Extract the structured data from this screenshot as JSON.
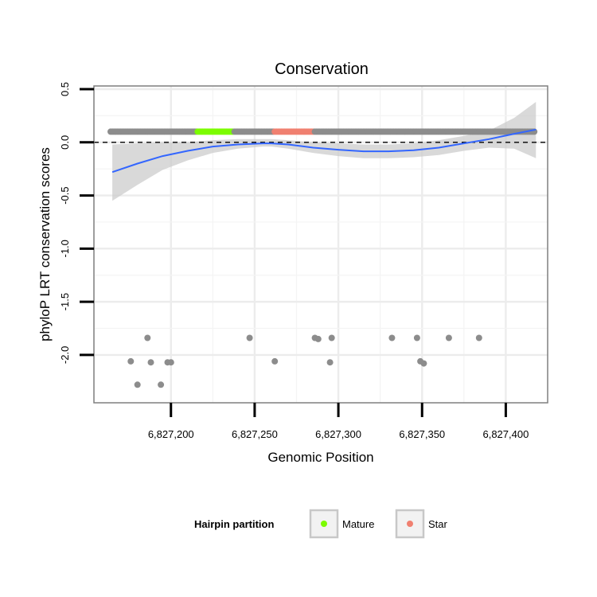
{
  "chart_data": {
    "type": "scatter",
    "title": "Conservation",
    "xlabel": "Genomic Position",
    "ylabel": "phyloP LRT conservation scores",
    "xlim": [
      6827154,
      6827425
    ],
    "ylim": [
      -2.45,
      0.53
    ],
    "x_ticks": [
      6827200,
      6827250,
      6827300,
      6827350,
      6827400
    ],
    "x_tick_labels": [
      "6,827,200",
      "6,827,250",
      "6,827,300",
      "6,827,350",
      "6,827,400"
    ],
    "y_ticks": [
      0.5,
      0.0,
      -0.5,
      -1.0,
      -1.5,
      -2.0
    ],
    "y_tick_labels": [
      "0.5",
      "0.0",
      "-0.5",
      "-1.0",
      "-1.5",
      "-2.0"
    ],
    "reference_line": {
      "y": 0.0,
      "style": "dashed"
    },
    "band_points": {
      "y": 0.1,
      "segments": [
        {
          "partition": "Other",
          "x_start": 6827164,
          "x_end": 6827215
        },
        {
          "partition": "Mature",
          "x_start": 6827216,
          "x_end": 6827237
        },
        {
          "partition": "Other",
          "x_start": 6827238,
          "x_end": 6827261
        },
        {
          "partition": "Star",
          "x_start": 6827262,
          "x_end": 6827285
        },
        {
          "partition": "Other",
          "x_start": 6827286,
          "x_end": 6827417
        }
      ]
    },
    "outlier_points": [
      {
        "x": 6827176,
        "y": -2.06
      },
      {
        "x": 6827180,
        "y": -2.28
      },
      {
        "x": 6827186,
        "y": -1.84
      },
      {
        "x": 6827188,
        "y": -2.07
      },
      {
        "x": 6827194,
        "y": -2.28
      },
      {
        "x": 6827198,
        "y": -2.07
      },
      {
        "x": 6827200,
        "y": -2.07
      },
      {
        "x": 6827247,
        "y": -1.84
      },
      {
        "x": 6827262,
        "y": -2.06
      },
      {
        "x": 6827286,
        "y": -1.84
      },
      {
        "x": 6827288,
        "y": -1.85
      },
      {
        "x": 6827295,
        "y": -2.07
      },
      {
        "x": 6827296,
        "y": -1.84
      },
      {
        "x": 6827332,
        "y": -1.84
      },
      {
        "x": 6827347,
        "y": -1.84
      },
      {
        "x": 6827349,
        "y": -2.06
      },
      {
        "x": 6827351,
        "y": -2.08
      },
      {
        "x": 6827366,
        "y": -1.84
      },
      {
        "x": 6827384,
        "y": -1.84
      }
    ],
    "smooth": {
      "x": [
        6827165,
        6827180,
        6827195,
        6827210,
        6827225,
        6827240,
        6827255,
        6827260,
        6827270,
        6827285,
        6827300,
        6827315,
        6827330,
        6827345,
        6827360,
        6827375,
        6827390,
        6827405,
        6827418
      ],
      "y": [
        -0.28,
        -0.2,
        -0.13,
        -0.08,
        -0.04,
        -0.02,
        -0.01,
        -0.01,
        -0.02,
        -0.05,
        -0.07,
        -0.085,
        -0.085,
        -0.075,
        -0.05,
        -0.01,
        0.03,
        0.08,
        0.12
      ],
      "lower": [
        -0.55,
        -0.4,
        -0.26,
        -0.17,
        -0.1,
        -0.06,
        -0.04,
        -0.04,
        -0.06,
        -0.1,
        -0.13,
        -0.15,
        -0.15,
        -0.14,
        -0.12,
        -0.08,
        -0.05,
        -0.06,
        -0.15
      ],
      "upper": [
        -0.02,
        -0.01,
        0.0,
        0.0,
        0.02,
        0.03,
        0.03,
        0.03,
        0.02,
        0.0,
        -0.01,
        -0.02,
        -0.02,
        -0.01,
        0.02,
        0.06,
        0.11,
        0.23,
        0.38
      ]
    },
    "colors": {
      "Other": "#8c8c8c",
      "Mature": "#7cfc00",
      "Star": "#f08070",
      "smooth": "#3366ff",
      "ribbon": "#cccccc"
    },
    "legend": {
      "title": "Hairpin partition",
      "position": "bottom",
      "entries": [
        {
          "label": "Mature",
          "color": "#7cfc00"
        },
        {
          "label": "Star",
          "color": "#f08070"
        }
      ]
    }
  }
}
